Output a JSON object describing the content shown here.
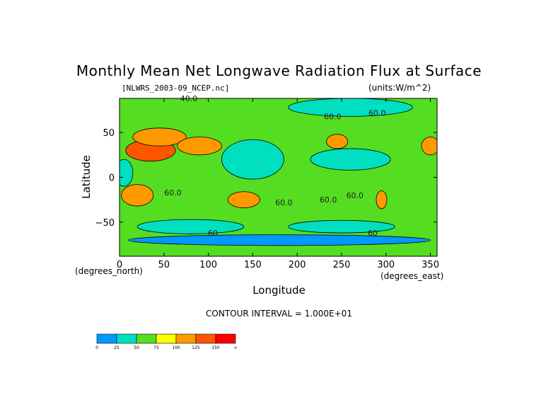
{
  "chart_data": {
    "type": "heatmap",
    "title": "Monthly Mean Net Longwave Radiation Flux at Surface",
    "file_label": "[NLWRS_2003-09_NCEP.nc]",
    "units_label": "(units:W/m^2)",
    "xlabel": "Longitude",
    "ylabel": "Latitude",
    "x_unit_label": "(degrees_east)",
    "y_unit_label": "(degrees_north)",
    "xlim": [
      0,
      357.5
    ],
    "ylim": [
      -88,
      88
    ],
    "x_ticks": [
      0,
      50,
      100,
      150,
      200,
      250,
      300,
      350
    ],
    "y_ticks": [
      -50,
      0,
      50
    ],
    "contour_interval_text": "CONTOUR INTERVAL = 1.000E+01",
    "contour_labels": [
      {
        "text": "40.0",
        "x": 78,
        "y": 88
      },
      {
        "text": "60.0",
        "x": 240,
        "y": 68
      },
      {
        "text": "60.0",
        "x": 290,
        "y": 72
      },
      {
        "text": "60.0",
        "x": 60,
        "y": -17
      },
      {
        "text": "60.0",
        "x": 185,
        "y": -28
      },
      {
        "text": "60.0",
        "x": 235,
        "y": -25
      },
      {
        "text": "60.0",
        "x": 265,
        "y": -20
      },
      {
        "text": "60",
        "x": 105,
        "y": -62
      },
      {
        "text": "60",
        "x": 285,
        "y": -62
      }
    ],
    "color_levels": [
      "0",
      "25",
      "50",
      "75",
      "100",
      "125",
      "150",
      "∞"
    ],
    "colors": [
      "#0099ff",
      "#00e0c0",
      "#55dd22",
      "#ffff00",
      "#ff9900",
      "#ff5500",
      "#ff0000"
    ],
    "regions": [
      {
        "type": "ellipse",
        "x": 35,
        "y": 30,
        "rx": 28,
        "ry": 12,
        "level": 5
      },
      {
        "type": "ellipse",
        "x": 45,
        "y": 45,
        "rx": 30,
        "ry": 10,
        "level": 4
      },
      {
        "type": "ellipse",
        "x": 90,
        "y": 35,
        "rx": 25,
        "ry": 10,
        "level": 4
      },
      {
        "type": "ellipse",
        "x": 20,
        "y": -20,
        "rx": 18,
        "ry": 12,
        "level": 4
      },
      {
        "type": "ellipse",
        "x": 140,
        "y": -25,
        "rx": 18,
        "ry": 9,
        "level": 4
      },
      {
        "type": "ellipse",
        "x": 245,
        "y": 40,
        "rx": 12,
        "ry": 8,
        "level": 4
      },
      {
        "type": "ellipse",
        "x": 350,
        "y": 35,
        "rx": 10,
        "ry": 10,
        "level": 4
      },
      {
        "type": "ellipse",
        "x": 295,
        "y": -25,
        "rx": 6,
        "ry": 10,
        "level": 4
      },
      {
        "type": "ellipse",
        "x": 150,
        "y": 20,
        "rx": 35,
        "ry": 22,
        "level": 1
      },
      {
        "type": "ellipse",
        "x": 260,
        "y": 20,
        "rx": 45,
        "ry": 12,
        "level": 1
      },
      {
        "type": "ellipse",
        "x": 260,
        "y": 78,
        "rx": 70,
        "ry": 10,
        "level": 1
      },
      {
        "type": "ellipse",
        "x": 80,
        "y": -55,
        "rx": 60,
        "ry": 8,
        "level": 1
      },
      {
        "type": "ellipse",
        "x": 250,
        "y": -55,
        "rx": 60,
        "ry": 7,
        "level": 1
      },
      {
        "type": "ellipse",
        "x": 5,
        "y": 5,
        "rx": 10,
        "ry": 15,
        "level": 1
      },
      {
        "type": "ellipse",
        "x": 180,
        "y": -70,
        "rx": 170,
        "ry": 6,
        "level": 0
      }
    ]
  }
}
